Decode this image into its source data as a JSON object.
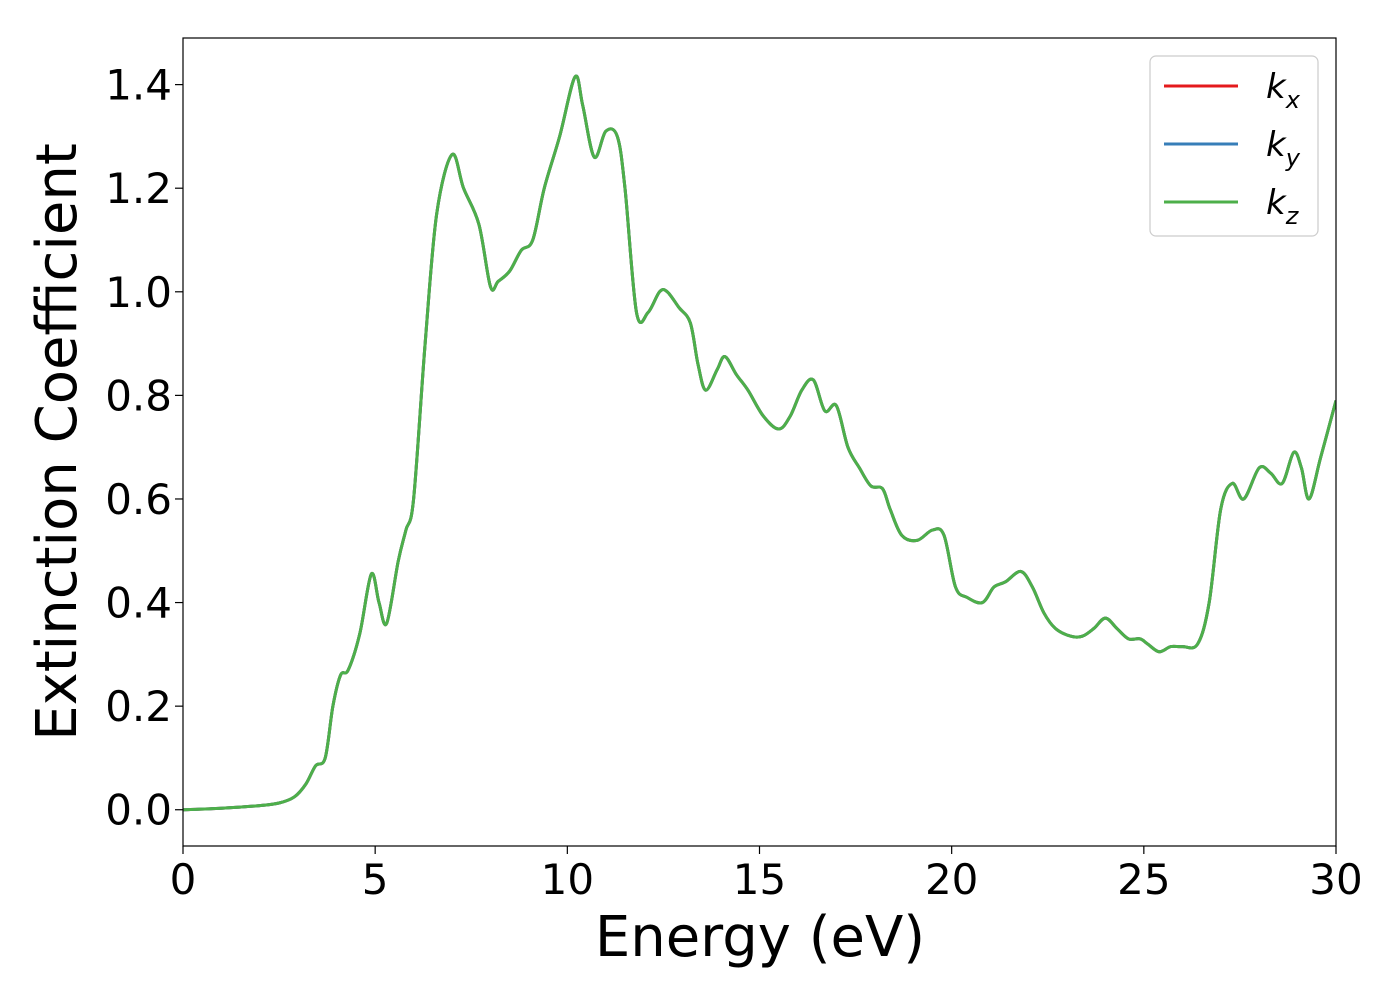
{
  "chart_data": {
    "type": "line",
    "title": "",
    "xlabel": "Energy (eV)",
    "ylabel": "Extinction Coefficient",
    "xlim": [
      0,
      30
    ],
    "ylim": [
      -0.07,
      1.49
    ],
    "xticks": [
      0,
      5,
      10,
      15,
      20,
      25,
      30
    ],
    "xtick_labels": [
      "0",
      "5",
      "10",
      "15",
      "20",
      "25",
      "30"
    ],
    "yticks": [
      0.0,
      0.2,
      0.4,
      0.6,
      0.8,
      1.0,
      1.2,
      1.4
    ],
    "ytick_labels": [
      "0.0",
      "0.2",
      "0.4",
      "0.6",
      "0.8",
      "1.0",
      "1.2",
      "1.4"
    ],
    "grid": false,
    "legend_position": "top-right",
    "x": [
      0,
      1,
      2,
      2.5,
      2.9,
      3.2,
      3.45,
      3.7,
      3.9,
      4.1,
      4.3,
      4.6,
      4.9,
      5.1,
      5.3,
      5.6,
      5.8,
      6.0,
      6.3,
      6.6,
      7.0,
      7.3,
      7.7,
      8.0,
      8.2,
      8.5,
      8.8,
      9.1,
      9.4,
      9.8,
      10.2,
      10.4,
      10.7,
      11.0,
      11.3,
      11.5,
      11.8,
      12.1,
      12.4,
      12.6,
      12.9,
      13.2,
      13.4,
      13.6,
      13.9,
      14.1,
      14.4,
      14.7,
      15.1,
      15.5,
      15.8,
      16.1,
      16.4,
      16.7,
      17.0,
      17.3,
      17.6,
      17.9,
      18.2,
      18.4,
      18.7,
      19.1,
      19.5,
      19.8,
      20.1,
      20.4,
      20.8,
      21.1,
      21.4,
      21.8,
      22.1,
      22.4,
      22.7,
      23.1,
      23.4,
      23.7,
      24.0,
      24.3,
      24.6,
      24.9,
      25.1,
      25.4,
      25.7,
      26.0,
      26.4,
      26.7,
      27.0,
      27.3,
      27.6,
      28.0,
      28.3,
      28.6,
      28.9,
      29.1,
      29.3,
      29.6,
      30.0
    ],
    "series": [
      {
        "name": "k_x",
        "color": "#e41a1c",
        "values": [
          0.0,
          0.003,
          0.008,
          0.013,
          0.025,
          0.05,
          0.085,
          0.1,
          0.2,
          0.26,
          0.27,
          0.34,
          0.455,
          0.4,
          0.36,
          0.48,
          0.54,
          0.6,
          0.9,
          1.15,
          1.265,
          1.2,
          1.13,
          1.01,
          1.02,
          1.04,
          1.08,
          1.1,
          1.2,
          1.3,
          1.415,
          1.36,
          1.26,
          1.31,
          1.3,
          1.2,
          0.96,
          0.96,
          1.0,
          1.0,
          0.97,
          0.94,
          0.86,
          0.81,
          0.85,
          0.875,
          0.84,
          0.81,
          0.76,
          0.735,
          0.76,
          0.81,
          0.83,
          0.77,
          0.78,
          0.7,
          0.66,
          0.625,
          0.62,
          0.58,
          0.53,
          0.52,
          0.54,
          0.53,
          0.43,
          0.41,
          0.4,
          0.43,
          0.44,
          0.46,
          0.43,
          0.38,
          0.35,
          0.335,
          0.335,
          0.35,
          0.37,
          0.35,
          0.33,
          0.33,
          0.32,
          0.305,
          0.315,
          0.315,
          0.32,
          0.4,
          0.58,
          0.63,
          0.6,
          0.66,
          0.65,
          0.63,
          0.69,
          0.66,
          0.6,
          0.68,
          0.79
        ]
      },
      {
        "name": "k_y",
        "color": "#377eb8",
        "values": [
          0.0,
          0.003,
          0.008,
          0.013,
          0.025,
          0.05,
          0.085,
          0.1,
          0.2,
          0.26,
          0.27,
          0.34,
          0.455,
          0.4,
          0.36,
          0.48,
          0.54,
          0.6,
          0.9,
          1.15,
          1.265,
          1.2,
          1.13,
          1.01,
          1.02,
          1.04,
          1.08,
          1.1,
          1.2,
          1.3,
          1.415,
          1.36,
          1.26,
          1.31,
          1.3,
          1.2,
          0.96,
          0.96,
          1.0,
          1.0,
          0.97,
          0.94,
          0.86,
          0.81,
          0.85,
          0.875,
          0.84,
          0.81,
          0.76,
          0.735,
          0.76,
          0.81,
          0.83,
          0.77,
          0.78,
          0.7,
          0.66,
          0.625,
          0.62,
          0.58,
          0.53,
          0.52,
          0.54,
          0.53,
          0.43,
          0.41,
          0.4,
          0.43,
          0.44,
          0.46,
          0.43,
          0.38,
          0.35,
          0.335,
          0.335,
          0.35,
          0.37,
          0.35,
          0.33,
          0.33,
          0.32,
          0.305,
          0.315,
          0.315,
          0.32,
          0.4,
          0.58,
          0.63,
          0.6,
          0.66,
          0.65,
          0.63,
          0.69,
          0.66,
          0.6,
          0.68,
          0.79
        ]
      },
      {
        "name": "k_z",
        "color": "#4daf4a",
        "values": [
          0.0,
          0.003,
          0.008,
          0.013,
          0.025,
          0.05,
          0.085,
          0.1,
          0.2,
          0.26,
          0.27,
          0.34,
          0.455,
          0.4,
          0.36,
          0.48,
          0.54,
          0.6,
          0.9,
          1.15,
          1.265,
          1.2,
          1.13,
          1.01,
          1.02,
          1.04,
          1.08,
          1.1,
          1.2,
          1.3,
          1.415,
          1.36,
          1.26,
          1.31,
          1.3,
          1.2,
          0.96,
          0.96,
          1.0,
          1.0,
          0.97,
          0.94,
          0.86,
          0.81,
          0.85,
          0.875,
          0.84,
          0.81,
          0.76,
          0.735,
          0.76,
          0.81,
          0.83,
          0.77,
          0.78,
          0.7,
          0.66,
          0.625,
          0.62,
          0.58,
          0.53,
          0.52,
          0.54,
          0.53,
          0.43,
          0.41,
          0.4,
          0.43,
          0.44,
          0.46,
          0.43,
          0.38,
          0.35,
          0.335,
          0.335,
          0.35,
          0.37,
          0.35,
          0.33,
          0.33,
          0.32,
          0.305,
          0.315,
          0.315,
          0.32,
          0.4,
          0.58,
          0.63,
          0.6,
          0.66,
          0.65,
          0.63,
          0.69,
          0.66,
          0.6,
          0.68,
          0.79
        ]
      }
    ],
    "legend": [
      {
        "base": "k",
        "sub": "x",
        "color": "#e41a1c"
      },
      {
        "base": "k",
        "sub": "y",
        "color": "#377eb8"
      },
      {
        "base": "k",
        "sub": "z",
        "color": "#4daf4a"
      }
    ]
  }
}
